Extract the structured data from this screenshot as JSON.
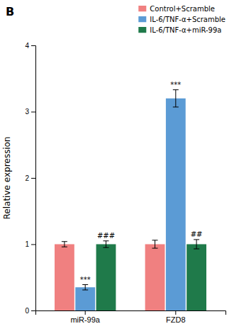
{
  "chart_data": {
    "type": "bar",
    "title": "B",
    "ylabel": "Relative expression",
    "categories": [
      "miR-99a",
      "FZD8"
    ],
    "series": [
      {
        "name": "Control+Scramble",
        "color": "#F08080",
        "values": [
          1.0,
          1.0
        ],
        "errors": [
          0.04,
          0.06
        ]
      },
      {
        "name": "IL-6/TNF-α+Scramble",
        "color": "#5B9BD5",
        "values": [
          0.35,
          3.2
        ],
        "errors": [
          0.04,
          0.13
        ]
      },
      {
        "name": "IL-6/TNF-α+miR-99a",
        "color": "#1F7A4A",
        "values": [
          1.0,
          1.0
        ],
        "errors": [
          0.05,
          0.07
        ]
      }
    ],
    "annotations": [
      {
        "text": "***",
        "category": "miR-99a",
        "series": "IL-6/TNF-α+Scramble"
      },
      {
        "text": "###",
        "category": "miR-99a",
        "series": "IL-6/TNF-α+miR-99a"
      },
      {
        "text": "***",
        "category": "FZD8",
        "series": "IL-6/TNF-α+Scramble"
      },
      {
        "text": "##",
        "category": "FZD8",
        "series": "IL-6/TNF-α+miR-99a"
      }
    ],
    "ylim": [
      0,
      4
    ],
    "yticks": [
      0,
      1,
      2,
      3,
      4
    ],
    "grid": false,
    "legend": "upper right"
  }
}
